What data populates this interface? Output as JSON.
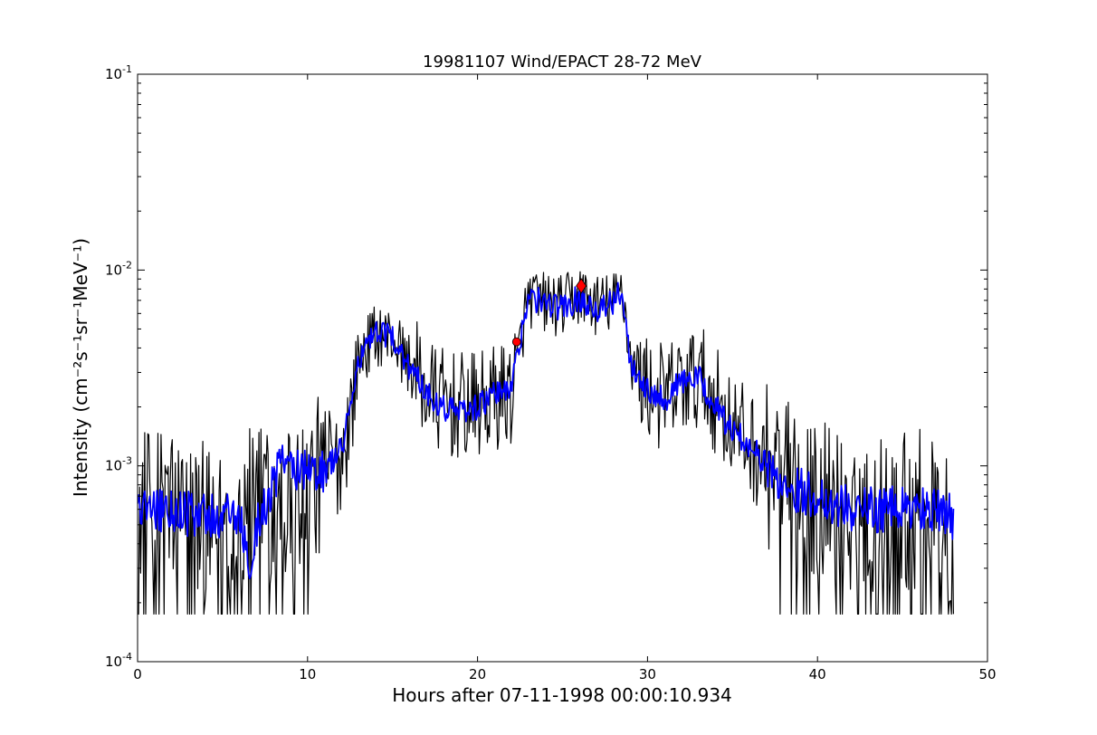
{
  "chart_data": {
    "type": "line",
    "title": "19981107 Wind/EPACT 28-72 MeV",
    "xlabel": "Hours after 07-11-1998 00:00:10.934",
    "ylabel": "Intensity (cm⁻²s⁻¹sr⁻¹MeV⁻¹)",
    "xlim": [
      0,
      50
    ],
    "ylim": [
      0.0001,
      0.1
    ],
    "yscale": "log",
    "grid": false,
    "x_ticks": [
      0,
      10,
      20,
      30,
      40,
      50
    ],
    "x_tick_labels": [
      "0",
      "10",
      "20",
      "30",
      "40",
      "50"
    ],
    "y_ticks": [
      0.0001,
      0.001,
      0.01,
      0.1
    ],
    "y_tick_labels": [
      {
        "base": "10",
        "exp": "-4"
      },
      {
        "base": "10",
        "exp": "-3"
      },
      {
        "base": "10",
        "exp": "-2"
      },
      {
        "base": "10",
        "exp": "-1"
      }
    ],
    "series": [
      {
        "color": "#000000",
        "style": "noisy raw intensity",
        "x": [
          0,
          2,
          4,
          6,
          8,
          10,
          11,
          12,
          12.5,
          13,
          14,
          15,
          16,
          17,
          18,
          19,
          20,
          21,
          22,
          22.3,
          22.8,
          23,
          24,
          25,
          26,
          27,
          28,
          28.5,
          29,
          30,
          31,
          32,
          33,
          34,
          35,
          36,
          37,
          38,
          40,
          42,
          44,
          46,
          48
        ],
        "y": [
          0.0006,
          0.0006,
          0.0005,
          0.0006,
          0.0006,
          0.0008,
          0.0009,
          0.0011,
          0.0018,
          0.0035,
          0.0047,
          0.0045,
          0.0033,
          0.0024,
          0.0021,
          0.002,
          0.002,
          0.0022,
          0.0024,
          0.0032,
          0.006,
          0.0072,
          0.0068,
          0.0065,
          0.0075,
          0.0066,
          0.0068,
          0.0085,
          0.0035,
          0.0025,
          0.0022,
          0.0026,
          0.0028,
          0.0022,
          0.0016,
          0.0013,
          0.001,
          0.00085,
          0.0007,
          0.0006,
          0.0006,
          0.0006,
          0.0005
        ]
      },
      {
        "color": "#0000ff",
        "style": "smoothed intensity",
        "x": [
          0,
          2,
          4,
          6,
          6.5,
          7,
          8,
          8.5,
          10,
          11,
          12,
          12.5,
          13,
          14,
          15,
          16,
          17,
          18,
          19,
          20,
          21,
          22,
          22.3,
          22.8,
          23,
          24,
          25,
          26,
          27,
          28,
          28.5,
          29,
          30,
          31,
          32,
          33,
          34,
          35,
          36,
          37,
          38,
          40,
          42,
          44,
          46,
          48
        ],
        "y": [
          0.0006,
          0.0006,
          0.00055,
          0.00055,
          0.0003,
          0.0005,
          0.0008,
          0.0011,
          0.0009,
          0.00095,
          0.0012,
          0.002,
          0.0035,
          0.0047,
          0.0045,
          0.0032,
          0.0024,
          0.002,
          0.0019,
          0.002,
          0.0023,
          0.0025,
          0.0035,
          0.0062,
          0.0072,
          0.0068,
          0.0064,
          0.0072,
          0.0064,
          0.0067,
          0.008,
          0.0034,
          0.0025,
          0.0022,
          0.0027,
          0.0028,
          0.002,
          0.0015,
          0.0013,
          0.001,
          0.0008,
          0.0007,
          0.0006,
          0.0006,
          0.0006,
          0.00055
        ]
      }
    ],
    "markers": [
      {
        "shape": "circle",
        "color": "#ff0000",
        "x": 22.3,
        "y": 0.0043
      },
      {
        "shape": "diamond",
        "color": "#ff0000",
        "x": 26.1,
        "y": 0.0083
      }
    ]
  }
}
